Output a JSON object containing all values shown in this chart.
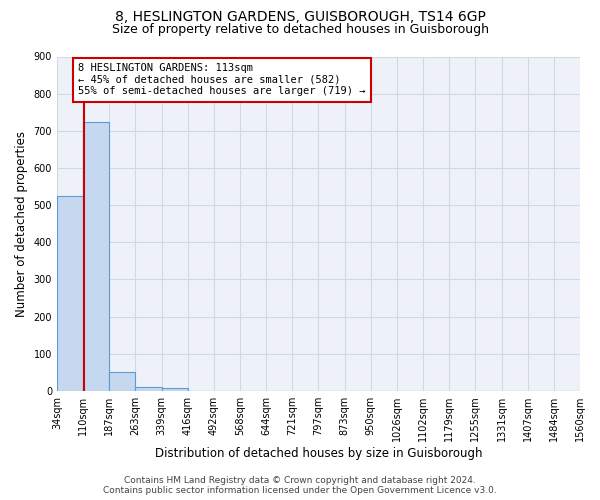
{
  "title_line1": "8, HESLINGTON GARDENS, GUISBOROUGH, TS14 6GP",
  "title_line2": "Size of property relative to detached houses in Guisborough",
  "xlabel": "Distribution of detached houses by size in Guisborough",
  "ylabel": "Number of detached properties",
  "bin_labels": [
    "34sqm",
    "110sqm",
    "187sqm",
    "263sqm",
    "339sqm",
    "416sqm",
    "492sqm",
    "568sqm",
    "644sqm",
    "721sqm",
    "797sqm",
    "873sqm",
    "950sqm",
    "1026sqm",
    "1102sqm",
    "1179sqm",
    "1255sqm",
    "1331sqm",
    "1407sqm",
    "1484sqm",
    "1560sqm"
  ],
  "bar_values": [
    525,
    725,
    50,
    10,
    8,
    0,
    0,
    0,
    0,
    0,
    0,
    0,
    0,
    0,
    0,
    0,
    0,
    0,
    0,
    0
  ],
  "bar_color": "#c5d8f0",
  "bar_edge_color": "#5b9bd5",
  "annotation_line1": "8 HESLINGTON GARDENS: 113sqm",
  "annotation_line2": "← 45% of detached houses are smaller (582)",
  "annotation_line3": "55% of semi-detached houses are larger (719) →",
  "annotation_box_color": "#ffffff",
  "annotation_box_edge": "#cc0000",
  "red_line_color": "#cc0000",
  "ylim": [
    0,
    900
  ],
  "yticks": [
    0,
    100,
    200,
    300,
    400,
    500,
    600,
    700,
    800,
    900
  ],
  "grid_color": "#d0d8e8",
  "bg_color": "#eef2f8",
  "footer_line1": "Contains HM Land Registry data © Crown copyright and database right 2024.",
  "footer_line2": "Contains public sector information licensed under the Open Government Licence v3.0.",
  "title_fontsize": 10,
  "subtitle_fontsize": 9,
  "label_fontsize": 8.5,
  "tick_fontsize": 7,
  "annotation_fontsize": 7.5,
  "footer_fontsize": 6.5
}
